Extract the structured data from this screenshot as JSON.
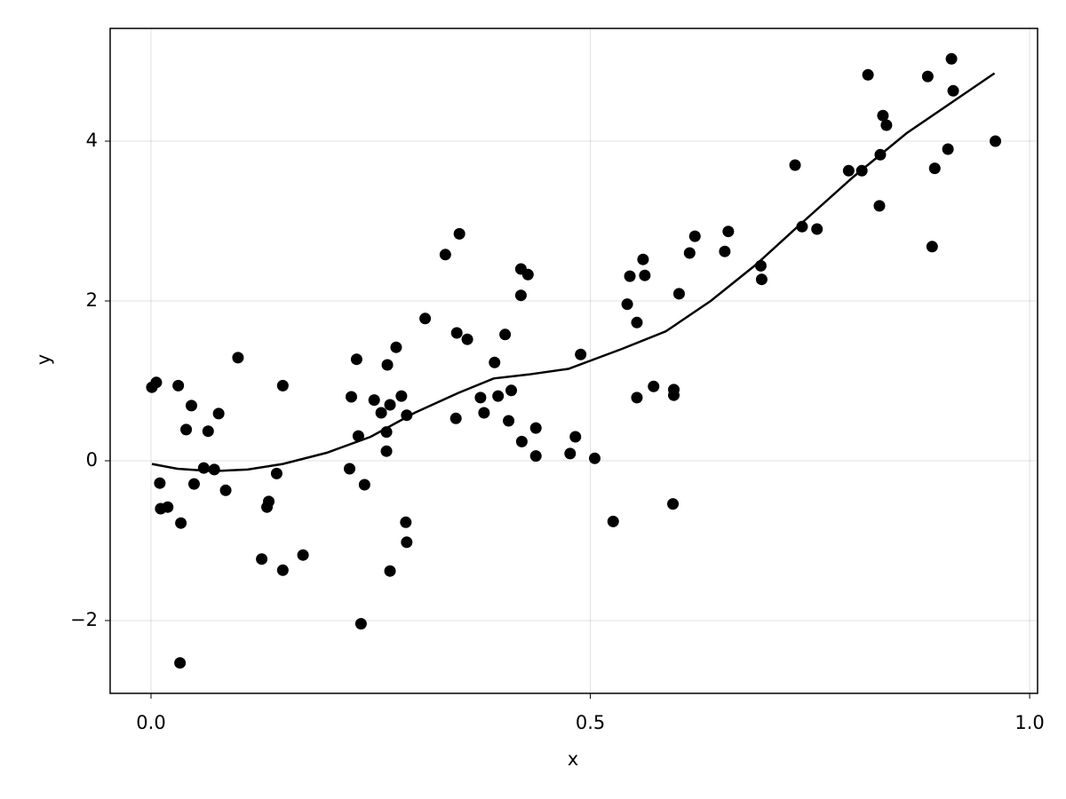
{
  "chart_data": {
    "type": "scatter",
    "grid": true,
    "x_label": "x",
    "y_label": "y",
    "xlim": [
      -0.0465,
      1.009
    ],
    "ylim": [
      -2.911,
      5.411
    ],
    "xticks": [
      {
        "value": 0,
        "label": "0.0"
      },
      0.5,
      {
        "value": 1,
        "label": "1.0"
      }
    ],
    "yticks": [
      {
        "value": -2,
        "label": "−2"
      },
      0,
      2,
      4
    ],
    "series": [
      {
        "type": "scatter",
        "color": "#000000",
        "x": [
          0.001,
          0.006,
          0.01,
          0.011,
          0.019,
          0.031,
          0.034,
          0.033,
          0.04,
          0.046,
          0.049,
          0.06,
          0.065,
          0.072,
          0.077,
          0.085,
          0.099,
          0.126,
          0.132,
          0.134,
          0.143,
          0.15,
          0.15,
          0.173,
          0.226,
          0.228,
          0.234,
          0.236,
          0.239,
          0.243,
          0.254,
          0.262,
          0.268,
          0.268,
          0.269,
          0.272,
          0.272,
          0.279,
          0.285,
          0.29,
          0.291,
          0.291,
          0.312,
          0.335,
          0.347,
          0.348,
          0.351,
          0.36,
          0.375,
          0.379,
          0.391,
          0.395,
          0.403,
          0.407,
          0.41,
          0.421,
          0.421,
          0.422,
          0.429,
          0.438,
          0.438,
          0.477,
          0.483,
          0.489,
          0.505,
          0.526,
          0.542,
          0.545,
          0.553,
          0.553,
          0.56,
          0.562,
          0.572,
          0.594,
          0.595,
          0.595,
          0.601,
          0.613,
          0.619,
          0.653,
          0.657,
          0.694,
          0.695,
          0.733,
          0.741,
          0.758,
          0.794,
          0.809,
          0.816,
          0.829,
          0.83,
          0.833,
          0.837,
          0.884,
          0.889,
          0.892,
          0.907,
          0.911,
          0.913,
          0.961
        ],
        "values": [
          0.92,
          0.98,
          -0.28,
          -0.6,
          -0.58,
          0.94,
          -0.78,
          -2.53,
          0.39,
          0.69,
          -0.29,
          -0.09,
          0.37,
          -0.11,
          0.59,
          -0.37,
          1.29,
          -1.23,
          -0.58,
          -0.51,
          -0.16,
          0.94,
          -1.37,
          -1.18,
          -0.1,
          0.8,
          1.27,
          0.31,
          -2.04,
          -0.3,
          0.76,
          0.6,
          0.36,
          0.12,
          1.2,
          -1.38,
          0.7,
          1.42,
          0.81,
          -0.77,
          -1.02,
          0.57,
          1.78,
          2.58,
          0.53,
          1.6,
          2.84,
          1.52,
          0.79,
          0.6,
          1.23,
          0.81,
          1.58,
          0.5,
          0.88,
          2.4,
          2.07,
          0.24,
          2.33,
          0.41,
          0.06,
          0.09,
          0.3,
          1.33,
          0.03,
          -0.76,
          1.96,
          2.31,
          1.73,
          0.79,
          2.52,
          2.32,
          0.93,
          -0.54,
          0.89,
          0.82,
          2.09,
          2.6,
          2.81,
          2.62,
          2.87,
          2.44,
          2.27,
          3.7,
          2.93,
          2.9,
          3.63,
          3.63,
          4.83,
          3.19,
          3.83,
          4.32,
          4.2,
          4.81,
          2.68,
          3.66,
          3.9,
          5.03,
          4.63,
          4.0
        ]
      },
      {
        "type": "line",
        "color": "#000000",
        "x": [
          0.001,
          0.03,
          0.07,
          0.11,
          0.15,
          0.2,
          0.25,
          0.3,
          0.35,
          0.39,
          0.43,
          0.475,
          0.536,
          0.586,
          0.637,
          0.688,
          0.738,
          0.799,
          0.86,
          0.92,
          0.96
        ],
        "values": [
          -0.04,
          -0.1,
          -0.13,
          -0.11,
          -0.04,
          0.1,
          0.3,
          0.6,
          0.85,
          1.03,
          1.08,
          1.15,
          1.4,
          1.62,
          2.0,
          2.45,
          2.95,
          3.55,
          4.1,
          4.55,
          4.85
        ]
      }
    ]
  }
}
